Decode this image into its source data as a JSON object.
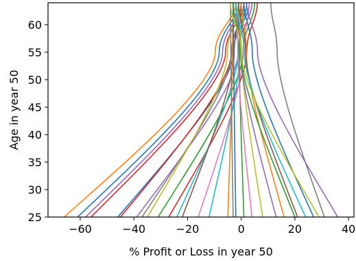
{
  "chart_data": {
    "type": "line",
    "title": "",
    "xlabel": "% Profit or Loss in year 50",
    "ylabel": "Age in year 50",
    "xlim": [
      -72,
      42
    ],
    "ylim": [
      25,
      64
    ],
    "x_ticks": [
      -60,
      -40,
      -20,
      0,
      20,
      40
    ],
    "x_tick_labels": [
      "−60",
      "−40",
      "−20",
      "0",
      "20",
      "40"
    ],
    "y_ticks": [
      25,
      30,
      35,
      40,
      45,
      50,
      55,
      60
    ],
    "y_tick_labels": [
      "25",
      "30",
      "35",
      "40",
      "45",
      "50",
      "55",
      "60"
    ],
    "grid": false,
    "legend": false,
    "y_top": 64,
    "y_center": 55,
    "series": [
      {
        "color": "#ff7f0e",
        "x_at_25": -66,
        "x_at_top": -2
      },
      {
        "color": "#1f77b4",
        "x_at_25": -61,
        "x_at_top": -1
      },
      {
        "color": "#9467bd",
        "x_at_25": -58,
        "x_at_top": 0
      },
      {
        "color": "#d62728",
        "x_at_25": -56,
        "x_at_top": 1
      },
      {
        "color": "#1f77b4",
        "x_at_25": -46,
        "x_at_top": 3
      },
      {
        "color": "#d62728",
        "x_at_25": -45,
        "x_at_top": 2
      },
      {
        "color": "#9467bd",
        "x_at_25": -39,
        "x_at_top": 4
      },
      {
        "color": "#7f7f7f",
        "x_at_25": -37,
        "x_at_top": 1
      },
      {
        "color": "#bcbd22",
        "x_at_25": -35,
        "x_at_top": -1
      },
      {
        "color": "#2ca02c",
        "x_at_25": -31,
        "x_at_top": 5
      },
      {
        "color": "#d62728",
        "x_at_25": -27,
        "x_at_top": 6
      },
      {
        "color": "#17becf",
        "x_at_25": -24,
        "x_at_top": 2
      },
      {
        "color": "#8c564b",
        "x_at_25": -22,
        "x_at_top": 0
      },
      {
        "color": "#e377c2",
        "x_at_25": -16,
        "x_at_top": 3
      },
      {
        "color": "#17becf",
        "x_at_25": -12,
        "x_at_top": 1
      },
      {
        "color": "#ff7f0e",
        "x_at_25": -5,
        "x_at_top": -3
      },
      {
        "color": "#7f7f7f",
        "x_at_25": -3,
        "x_at_top": -4
      },
      {
        "color": "#1f77b4",
        "x_at_25": -2,
        "x_at_top": -3
      },
      {
        "color": "#2ca02c",
        "x_at_25": 1,
        "x_at_top": -1
      },
      {
        "color": "#e377c2",
        "x_at_25": 4,
        "x_at_top": -2
      },
      {
        "color": "#bcbd22",
        "x_at_25": 8,
        "x_at_top": -1
      },
      {
        "color": "#9467bd",
        "x_at_25": 13,
        "x_at_top": -2
      },
      {
        "color": "#ff7f0e",
        "x_at_25": 16,
        "x_at_top": 0
      },
      {
        "color": "#2ca02c",
        "x_at_25": 20,
        "x_at_top": -3
      },
      {
        "color": "#8c564b",
        "x_at_25": 21,
        "x_at_top": -1
      },
      {
        "color": "#17becf",
        "x_at_25": 24,
        "x_at_top": -2
      },
      {
        "color": "#1f77b4",
        "x_at_25": 27,
        "x_at_top": 1
      },
      {
        "color": "#bcbd22",
        "x_at_25": 29,
        "x_at_top": -4
      },
      {
        "color": "#7f7f7f",
        "x_at_25": 31,
        "x_at_top": 11
      },
      {
        "color": "#9467bd",
        "x_at_25": 36,
        "x_at_top": 2
      }
    ]
  }
}
